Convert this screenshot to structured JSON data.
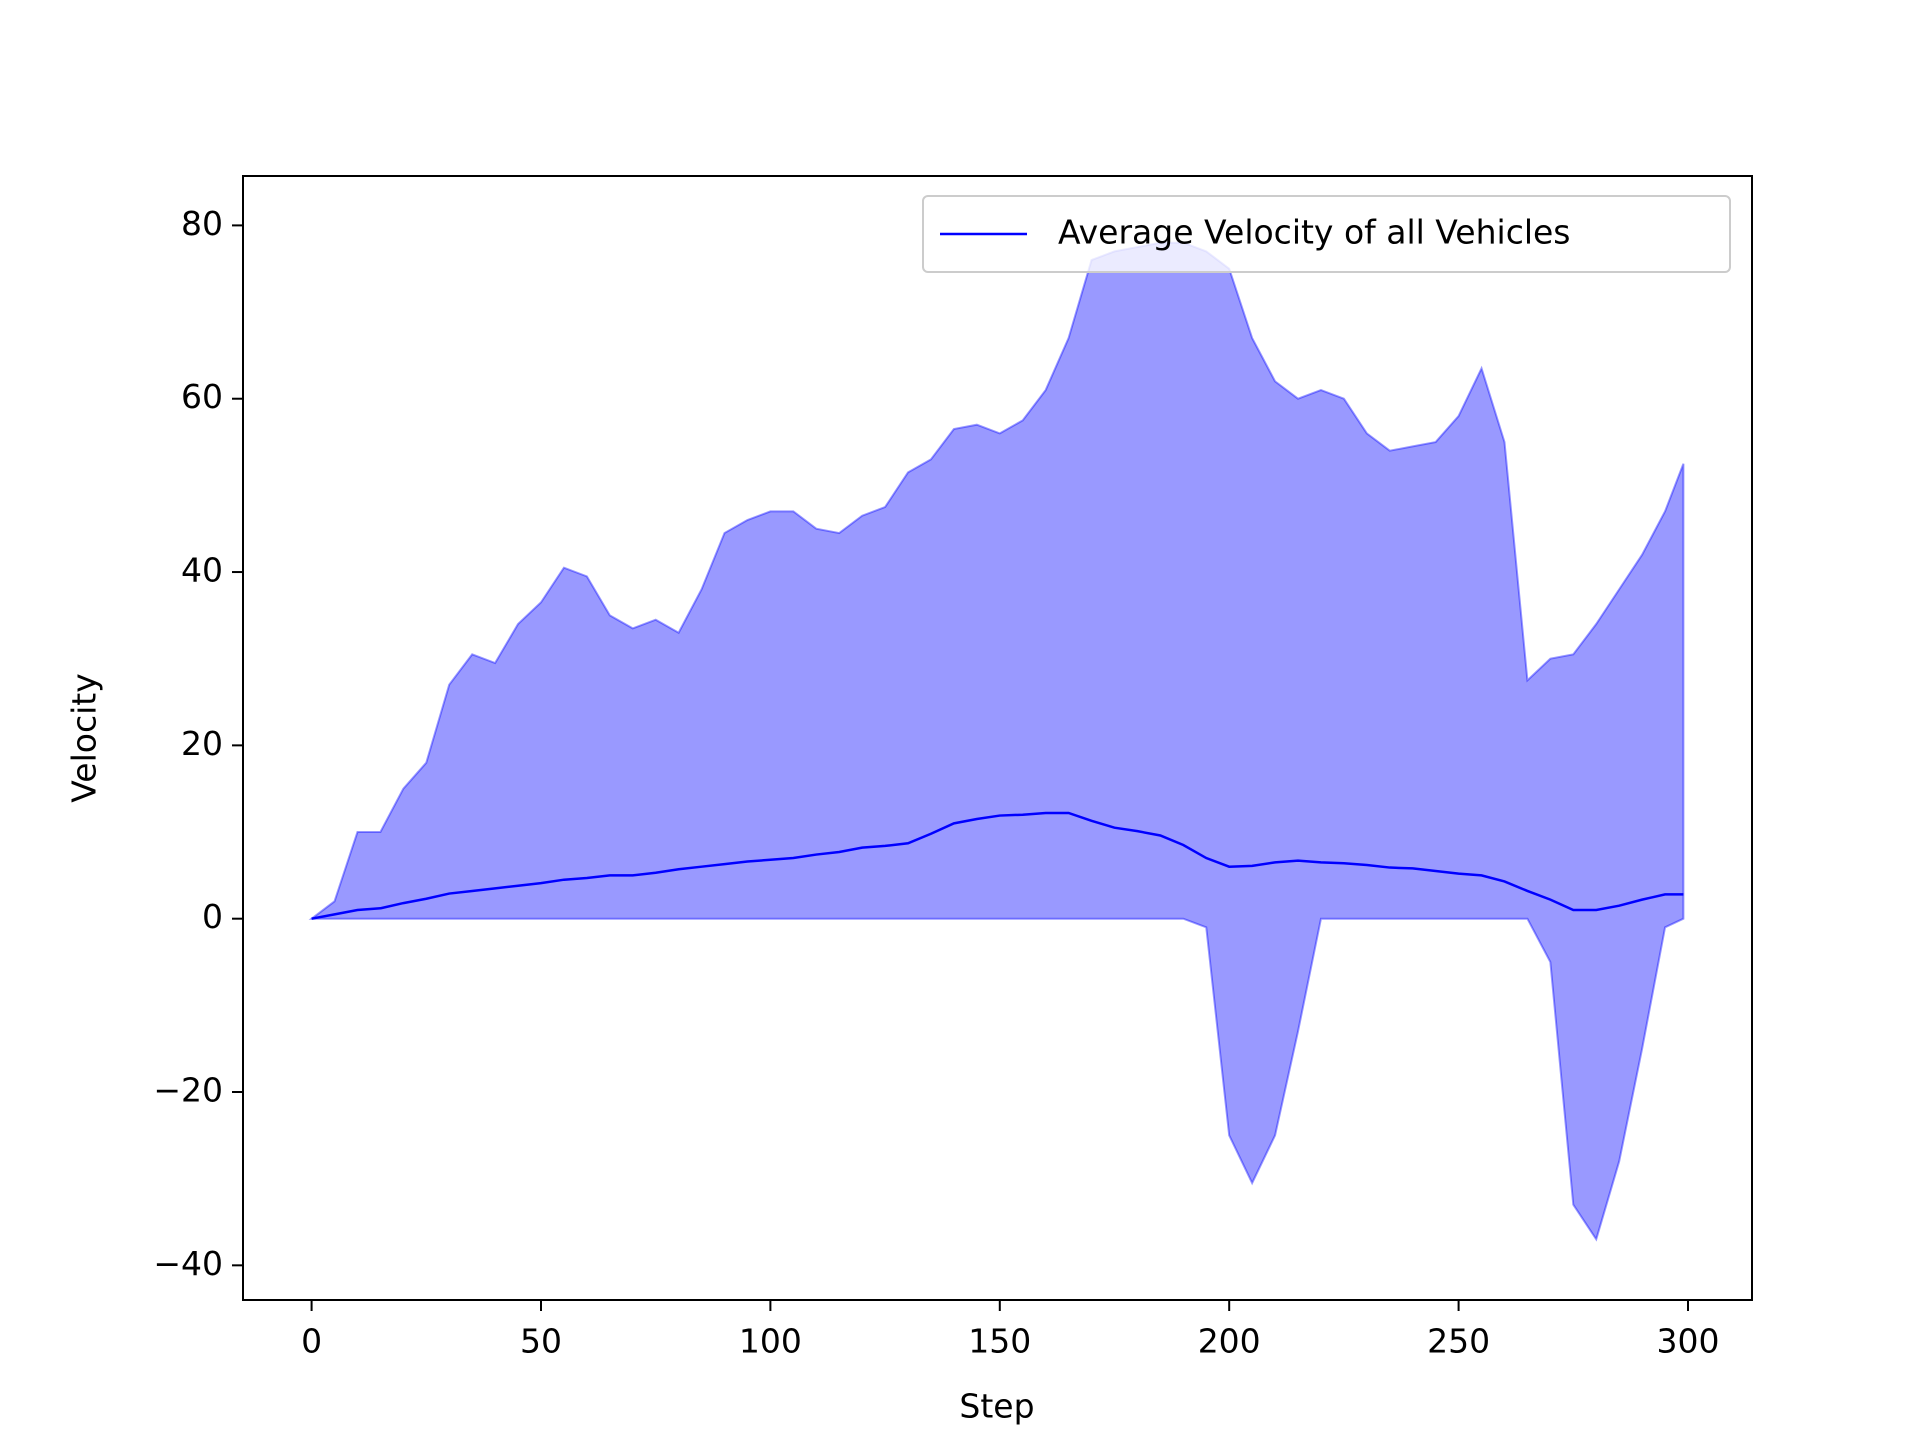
{
  "chart_data": {
    "type": "line",
    "xlabel": "Step",
    "ylabel": "Velocity",
    "x": [
      0,
      5,
      10,
      15,
      20,
      25,
      30,
      35,
      40,
      45,
      50,
      55,
      60,
      65,
      70,
      75,
      80,
      85,
      90,
      95,
      100,
      105,
      110,
      115,
      120,
      125,
      130,
      135,
      140,
      145,
      150,
      155,
      160,
      165,
      170,
      175,
      180,
      185,
      190,
      195,
      200,
      205,
      210,
      215,
      220,
      225,
      230,
      235,
      240,
      245,
      250,
      255,
      260,
      265,
      270,
      275,
      280,
      285,
      290,
      295,
      299
    ],
    "series": [
      {
        "name": "Average Velocity of all Vehicles",
        "color": "#0000ff",
        "values": [
          0,
          0.5,
          1,
          1.2,
          1.8,
          2.3,
          2.9,
          3.2,
          3.5,
          3.8,
          4.1,
          4.5,
          4.7,
          5,
          5,
          5.3,
          5.7,
          6,
          6.3,
          6.6,
          6.8,
          7,
          7.4,
          7.7,
          8.2,
          8.4,
          8.7,
          9.8,
          11,
          11.5,
          11.9,
          12,
          12.2,
          12.2,
          11.3,
          10.5,
          10.1,
          9.6,
          8.5,
          7,
          6,
          6.1,
          6.5,
          6.7,
          6.5,
          6.4,
          6.2,
          5.9,
          5.8,
          5.5,
          5.2,
          5,
          4.3,
          3.2,
          2.2,
          1,
          1,
          1.5,
          2.2,
          2.8,
          2.8
        ]
      }
    ],
    "band": {
      "color": "#0000ff",
      "upper": [
        0,
        2,
        10,
        10,
        15,
        18,
        27,
        30.5,
        29.5,
        34,
        36.5,
        40.5,
        39.5,
        35,
        33.5,
        34.5,
        33,
        38,
        44.5,
        46,
        47,
        47,
        45,
        44.5,
        46.5,
        47.5,
        51.5,
        53,
        56.5,
        57,
        56,
        57.5,
        61,
        67,
        76,
        77,
        77.5,
        78,
        78,
        77,
        75,
        67,
        62,
        60,
        61,
        60,
        56,
        54,
        54.5,
        55,
        58,
        63.5,
        55,
        27.5,
        30,
        30.5,
        34,
        38,
        42,
        47,
        52.5
      ],
      "lower": [
        0,
        0,
        0,
        0,
        0,
        0,
        0,
        0,
        0,
        0,
        0,
        0,
        0,
        0,
        0,
        0,
        0,
        0,
        0,
        0,
        0,
        0,
        0,
        0,
        0,
        0,
        0,
        0,
        0,
        0,
        0,
        0,
        0,
        0,
        0,
        0,
        0,
        0,
        0,
        -1,
        -25,
        -30.5,
        -25,
        -13,
        0,
        0,
        0,
        0,
        0,
        0,
        0,
        0,
        0,
        0,
        -5,
        -33,
        -37,
        -28,
        -15,
        -1,
        0
      ]
    },
    "xlim": [
      -14.95,
      313.95
    ],
    "ylim": [
      -44,
      85.7
    ],
    "xticks": [
      0,
      50,
      100,
      150,
      200,
      250,
      300
    ],
    "yticks": [
      {
        "value": -40,
        "label": "−40"
      },
      {
        "value": -20,
        "label": "−20"
      },
      0,
      20,
      40,
      60,
      80
    ],
    "legend": "upper right"
  }
}
